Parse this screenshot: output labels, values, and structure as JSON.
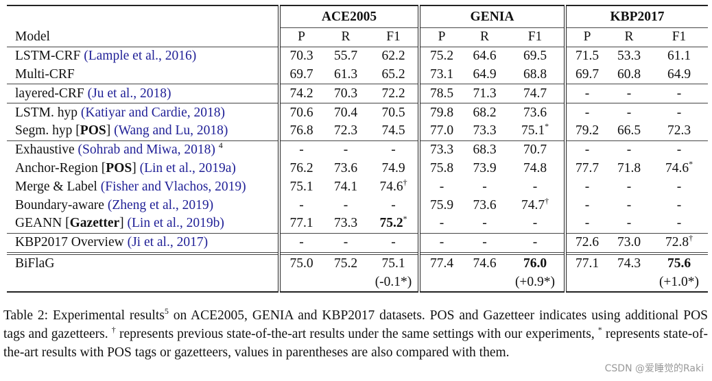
{
  "table": {
    "model_header": "Model",
    "groups": [
      "ACE2005",
      "GENIA",
      "KBP2017"
    ],
    "metrics": [
      "P",
      "R",
      "F1"
    ],
    "rows": [
      {
        "name": "LSTM-CRF ",
        "tag": "",
        "cite": "(Lample et al., 2016)",
        "note": "",
        "sep": "none",
        "values": [
          {
            "v": "70.3"
          },
          {
            "v": "55.7"
          },
          {
            "v": "62.2"
          },
          {
            "v": "75.2"
          },
          {
            "v": "64.6"
          },
          {
            "v": "69.5"
          },
          {
            "v": "71.5"
          },
          {
            "v": "53.3"
          },
          {
            "v": "61.1"
          }
        ]
      },
      {
        "name": "Multi-CRF",
        "tag": "",
        "cite": "",
        "note": "",
        "sep": "none",
        "values": [
          {
            "v": "69.7"
          },
          {
            "v": "61.3"
          },
          {
            "v": "65.2"
          },
          {
            "v": "73.1"
          },
          {
            "v": "64.9"
          },
          {
            "v": "68.8"
          },
          {
            "v": "69.7"
          },
          {
            "v": "60.8"
          },
          {
            "v": "64.9"
          }
        ]
      },
      {
        "name": "layered-CRF ",
        "tag": "",
        "cite": "(Ju et al., 2018)",
        "note": "",
        "sep": "line",
        "values": [
          {
            "v": "74.2"
          },
          {
            "v": "70.3"
          },
          {
            "v": "72.2"
          },
          {
            "v": "78.5"
          },
          {
            "v": "71.3"
          },
          {
            "v": "74.7"
          },
          {
            "v": "-"
          },
          {
            "v": "-"
          },
          {
            "v": "-"
          }
        ]
      },
      {
        "name": "LSTM. hyp ",
        "tag": "",
        "cite": "(Katiyar and Cardie, 2018)",
        "note": "",
        "sep": "line",
        "values": [
          {
            "v": "70.6"
          },
          {
            "v": "70.4"
          },
          {
            "v": "70.5"
          },
          {
            "v": "79.8"
          },
          {
            "v": "68.2"
          },
          {
            "v": "73.6"
          },
          {
            "v": "-"
          },
          {
            "v": "-"
          },
          {
            "v": "-"
          }
        ]
      },
      {
        "name": "Segm. hyp ",
        "tag": "POS",
        "cite": "(Wang and Lu, 2018)",
        "note": "",
        "sep": "none",
        "values": [
          {
            "v": "76.8"
          },
          {
            "v": "72.3"
          },
          {
            "v": "74.5"
          },
          {
            "v": "77.0"
          },
          {
            "v": "73.3"
          },
          {
            "v": "75.1",
            "mark": "*"
          },
          {
            "v": "79.2"
          },
          {
            "v": "66.5"
          },
          {
            "v": "72.3"
          }
        ]
      },
      {
        "name": "Exhaustive ",
        "tag": "",
        "cite": "(Sohrab and Miwa, 2018)",
        "note": "4",
        "sep": "line",
        "values": [
          {
            "v": "-"
          },
          {
            "v": "-"
          },
          {
            "v": "-"
          },
          {
            "v": "73.3"
          },
          {
            "v": "68.3"
          },
          {
            "v": "70.7"
          },
          {
            "v": "-"
          },
          {
            "v": "-"
          },
          {
            "v": "-"
          }
        ]
      },
      {
        "name": "Anchor-Region ",
        "tag": "POS",
        "cite": "(Lin et al., 2019a)",
        "note": "",
        "sep": "none",
        "values": [
          {
            "v": "76.2"
          },
          {
            "v": "73.6"
          },
          {
            "v": "74.9"
          },
          {
            "v": "75.8"
          },
          {
            "v": "73.9"
          },
          {
            "v": "74.8"
          },
          {
            "v": "77.7"
          },
          {
            "v": "71.8"
          },
          {
            "v": "74.6",
            "mark": "*"
          }
        ]
      },
      {
        "name": "Merge & Label ",
        "tag": "",
        "cite": "(Fisher and Vlachos, 2019)",
        "note": "",
        "sep": "none",
        "values": [
          {
            "v": "75.1"
          },
          {
            "v": "74.1"
          },
          {
            "v": "74.6",
            "mark": "†"
          },
          {
            "v": "-"
          },
          {
            "v": "-"
          },
          {
            "v": "-"
          },
          {
            "v": "-"
          },
          {
            "v": "-"
          },
          {
            "v": "-"
          }
        ]
      },
      {
        "name": "Boundary-aware ",
        "tag": "",
        "cite": "(Zheng et al., 2019)",
        "note": "",
        "sep": "none",
        "values": [
          {
            "v": "-"
          },
          {
            "v": "-"
          },
          {
            "v": "-"
          },
          {
            "v": "75.9"
          },
          {
            "v": "73.6"
          },
          {
            "v": "74.7",
            "mark": "†"
          },
          {
            "v": "-"
          },
          {
            "v": "-"
          },
          {
            "v": "-"
          }
        ]
      },
      {
        "name": "GEANN ",
        "tag": "Gazetter",
        "cite": "(Lin et al., 2019b)",
        "note": "",
        "sep": "none",
        "values": [
          {
            "v": "77.1"
          },
          {
            "v": "73.3"
          },
          {
            "v": "75.2",
            "mark": "*",
            "bold": true
          },
          {
            "v": "-"
          },
          {
            "v": "-"
          },
          {
            "v": "-"
          },
          {
            "v": "-"
          },
          {
            "v": "-"
          },
          {
            "v": "-"
          }
        ]
      },
      {
        "name": "KBP2017 Overview ",
        "tag": "",
        "cite": "(Ji et al., 2017)",
        "note": "",
        "sep": "line",
        "values": [
          {
            "v": "-"
          },
          {
            "v": "-"
          },
          {
            "v": "-"
          },
          {
            "v": "-"
          },
          {
            "v": "-"
          },
          {
            "v": "-"
          },
          {
            "v": "72.6"
          },
          {
            "v": "73.0"
          },
          {
            "v": "72.8",
            "mark": "†"
          }
        ]
      },
      {
        "name": "BiFlaG",
        "tag": "",
        "cite": "",
        "note": "",
        "sep": "double",
        "values": [
          {
            "v": "75.0"
          },
          {
            "v": "75.2"
          },
          {
            "v": "75.1"
          },
          {
            "v": "77.4"
          },
          {
            "v": "74.6"
          },
          {
            "v": "76.0",
            "bold": true
          },
          {
            "v": "77.1"
          },
          {
            "v": "74.3"
          },
          {
            "v": "75.6",
            "bold": true
          }
        ]
      },
      {
        "name": "",
        "tag": "",
        "cite": "",
        "note": "",
        "sep": "none",
        "values": [
          {
            "v": ""
          },
          {
            "v": ""
          },
          {
            "v": "(-0.1*)"
          },
          {
            "v": ""
          },
          {
            "v": ""
          },
          {
            "v": "(+0.9*)"
          },
          {
            "v": ""
          },
          {
            "v": ""
          },
          {
            "v": "(+1.0*)"
          }
        ]
      }
    ]
  },
  "caption": {
    "label": "Table 2: Experimental results",
    "footnote_mark": "5",
    "text1": " on ACE2005, GENIA and KBP2017 datasets. POS and Gazetteer indicates using additional POS tags and gazetteers. ",
    "dagger": "†",
    "text2": " represents previous state-of-the-art results under the same settings with our experiments, ",
    "star": "*",
    "text3": " represents state-of-the-art results with POS tags or gazetteers, values in parentheses are also compared with them."
  },
  "watermark": "CSDN @爱睡觉的Raki",
  "colors": {
    "citation": "#1f1f96"
  }
}
